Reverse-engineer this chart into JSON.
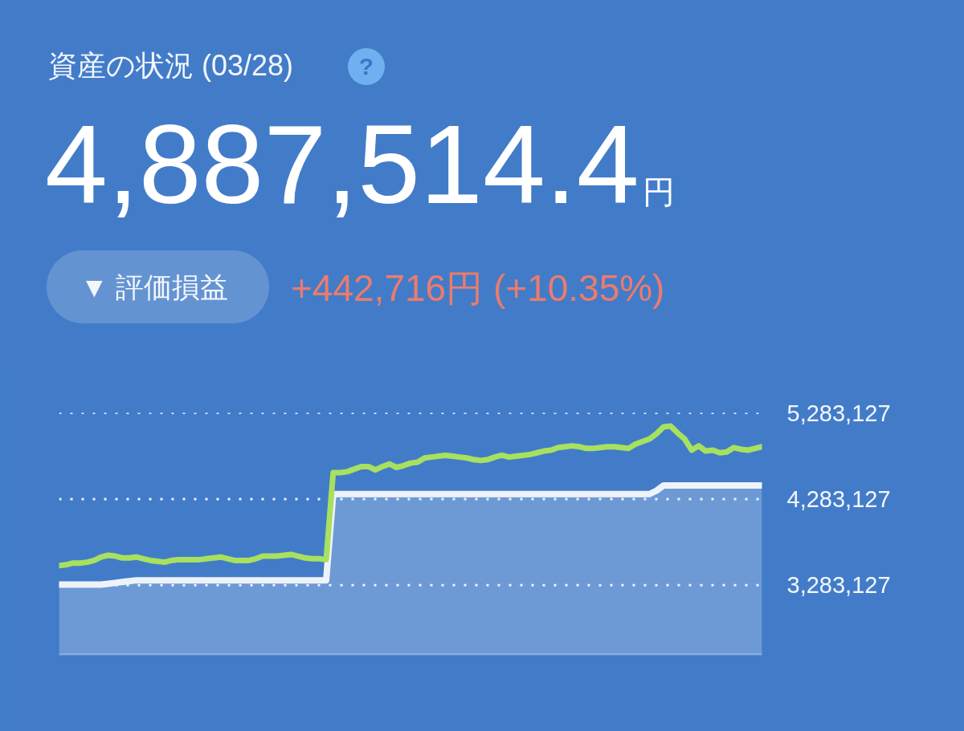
{
  "chart_data": {
    "type": "line",
    "title": "資産の状況 (03/28)",
    "subtitle": "4,887,514.4",
    "annotations": [
      "円",
      "?",
      "▼ 評価損益",
      "+442,716円 (+10.35%)"
    ],
    "categories": [
      null,
      null,
      null,
      null,
      null,
      null,
      null,
      null,
      null,
      null,
      null,
      null,
      null,
      null,
      null,
      null,
      null,
      null,
      null,
      null,
      null,
      null,
      null,
      null,
      null,
      null,
      null,
      null,
      null,
      null,
      null,
      null,
      null,
      null,
      null,
      null,
      null,
      null,
      null,
      null,
      null,
      null,
      null,
      null,
      null,
      null,
      null,
      null,
      null,
      null,
      null,
      null,
      null,
      null,
      null,
      null,
      null,
      null,
      null,
      null,
      null,
      null,
      null,
      null,
      null,
      null,
      null,
      null,
      null,
      null,
      null,
      null,
      null,
      null,
      null,
      null,
      null,
      null,
      null,
      null,
      null,
      null,
      null,
      null,
      null,
      null,
      null,
      null,
      null,
      null,
      null,
      null,
      null,
      null,
      null,
      null,
      null,
      null,
      null,
      null,
      null
    ],
    "series": [
      {
        "type": "area",
        "color": "#eef3fa",
        "values": [
          3290000,
          3290000,
          3290000,
          3290000,
          3290000,
          3290000,
          3290000,
          3300000,
          3310000,
          3320000,
          3330000,
          3340000,
          3340000,
          3340000,
          3340000,
          3340000,
          3340000,
          3340000,
          3340000,
          3340000,
          3340000,
          3340000,
          3340000,
          3340000,
          3340000,
          3340000,
          3340000,
          3340000,
          3340000,
          3340000,
          3340000,
          3340000,
          3340000,
          3340000,
          3340000,
          3340000,
          3340000,
          3340000,
          3340000,
          4340000,
          4340000,
          4340000,
          4340000,
          4340000,
          4340000,
          4340000,
          4340000,
          4340000,
          4340000,
          4340000,
          4340000,
          4340000,
          4340000,
          4340000,
          4340000,
          4340000,
          4340000,
          4340000,
          4340000,
          4340000,
          4340000,
          4340000,
          4340000,
          4340000,
          4340000,
          4340000,
          4340000,
          4340000,
          4340000,
          4340000,
          4340000,
          4340000,
          4340000,
          4340000,
          4340000,
          4340000,
          4340000,
          4340000,
          4340000,
          4340000,
          4340000,
          4340000,
          4340000,
          4340000,
          4340000,
          4380000,
          4440000,
          4440000,
          4440000,
          4440000,
          4440000,
          4440000,
          4440000,
          4440000,
          4440000,
          4440000,
          4440000,
          4440000,
          4440000,
          4440000,
          4440000
        ]
      },
      {
        "color": "#a8e05f",
        "values": [
          3510000,
          3520000,
          3540000,
          3540000,
          3550000,
          3570000,
          3610000,
          3630000,
          3620000,
          3600000,
          3600000,
          3610000,
          3590000,
          3570000,
          3560000,
          3550000,
          3570000,
          3580000,
          3580000,
          3580000,
          3580000,
          3590000,
          3600000,
          3610000,
          3590000,
          3570000,
          3570000,
          3570000,
          3590000,
          3620000,
          3620000,
          3620000,
          3630000,
          3640000,
          3620000,
          3600000,
          3590000,
          3590000,
          3580000,
          4590000,
          4590000,
          4600000,
          4630000,
          4660000,
          4660000,
          4620000,
          4660000,
          4690000,
          4650000,
          4670000,
          4700000,
          4710000,
          4760000,
          4770000,
          4780000,
          4790000,
          4780000,
          4770000,
          4760000,
          4740000,
          4730000,
          4740000,
          4770000,
          4790000,
          4770000,
          4780000,
          4790000,
          4800000,
          4820000,
          4840000,
          4850000,
          4880000,
          4890000,
          4900000,
          4890000,
          4870000,
          4870000,
          4880000,
          4890000,
          4890000,
          4880000,
          4870000,
          4920000,
          4950000,
          4980000,
          5040000,
          5120000,
          5130000,
          5050000,
          4980000,
          4850000,
          4900000,
          4840000,
          4850000,
          4820000,
          4830000,
          4880000,
          4860000,
          4850000,
          4870000,
          4890000
        ]
      }
    ],
    "ylim": [
      2480000,
      5283127
    ],
    "yticks": [
      {
        "value": 3283127,
        "label": "3,283,127"
      },
      {
        "value": 4283127,
        "label": "4,283,127"
      },
      {
        "value": 5283127,
        "label": "5,283,127"
      }
    ],
    "grid": "y"
  }
}
